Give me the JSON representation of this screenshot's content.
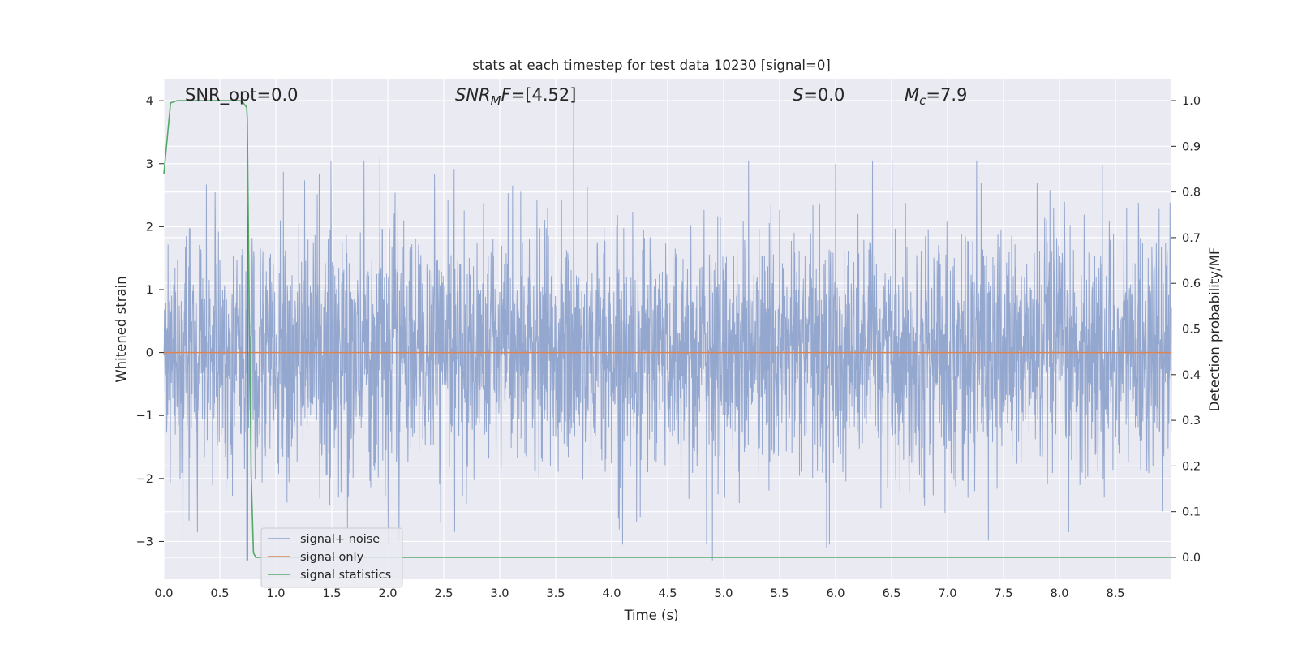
{
  "chart_data": {
    "type": "line",
    "title": "stats at each timestep for test data 10230 [signal=0]",
    "xlabel": "Time (s)",
    "ylabel": "Whitened strain",
    "y2label": "Detection probability/MF",
    "xlim": [
      0.0,
      9.0
    ],
    "ylim": [
      -3.6,
      4.35
    ],
    "y2lim": [
      -0.048,
      1.048
    ],
    "xticks": [
      "0.0",
      "0.5",
      "1.0",
      "1.5",
      "2.0",
      "2.5",
      "3.0",
      "3.5",
      "4.0",
      "4.5",
      "5.0",
      "5.5",
      "6.0",
      "6.5",
      "7.0",
      "7.5",
      "8.0",
      "8.5"
    ],
    "yticks": [
      "−3",
      "−2",
      "−1",
      "0",
      "1",
      "2",
      "3",
      "4"
    ],
    "y2ticks": [
      "0.0",
      "0.1",
      "0.2",
      "0.3",
      "0.4",
      "0.5",
      "0.6",
      "0.7",
      "0.8",
      "0.9",
      "1.0"
    ],
    "grid": true,
    "legend_position": "lower-left",
    "annotations": {
      "snr_opt": "SNR_opt=0.0",
      "snr_mf_main": "SNR",
      "snr_mf_sub": "M",
      "snr_mf_tail": "F",
      "snr_mf_value": "=[4.52]",
      "s_symbol": "S",
      "s_value": "=0.0",
      "mc_symbol": "M",
      "mc_sub": "c",
      "mc_value": "=7.9"
    },
    "series": [
      {
        "name": "signal+ noise",
        "axis": "left",
        "color": "#8fa3cc",
        "description": "dense noise, approx. gaussian, std ≈ 0.95",
        "noise_sigma": 0.95,
        "noise_seed": 10230,
        "peaks": [
          {
            "x": 0.75,
            "y": 2.4
          },
          {
            "x": 0.74,
            "y": -3.3
          },
          {
            "x": 1.93,
            "y": 3.1
          },
          {
            "x": 3.66,
            "y": 4.0
          },
          {
            "x": 4.9,
            "y": -3.3
          },
          {
            "x": 6.0,
            "y": 3.0
          },
          {
            "x": 5.92,
            "y": -3.1
          },
          {
            "x": 0.17,
            "y": -3.0
          },
          {
            "x": 1.64,
            "y": -2.8
          },
          {
            "x": 2.1,
            "y": -3.0
          },
          {
            "x": 7.3,
            "y": 2.7
          },
          {
            "x": 7.8,
            "y": 2.7
          },
          {
            "x": 8.6,
            "y": 2.3
          },
          {
            "x": 8.4,
            "y": -2.3
          }
        ]
      },
      {
        "name": "signal only",
        "axis": "left",
        "color": "#dd8452",
        "x": [
          0.0,
          9.0
        ],
        "y": [
          0.0,
          0.0
        ]
      },
      {
        "name": "signal statistics",
        "axis": "right",
        "color": "#55a868",
        "x": [
          0.0,
          0.06,
          0.12,
          0.5,
          0.68,
          0.71,
          0.74,
          0.745,
          0.76,
          0.78,
          0.8,
          0.82,
          0.86,
          9.0
        ],
        "y": [
          0.84,
          0.995,
          1.0,
          1.0,
          1.0,
          0.995,
          0.985,
          0.96,
          0.6,
          0.18,
          0.01,
          0.0,
          0.0,
          0.0
        ]
      }
    ],
    "colors": {
      "plot_bg": "#eaeaf2",
      "grid": "#ffffff",
      "text": "#262626",
      "marker_line": "#4a5670"
    }
  }
}
